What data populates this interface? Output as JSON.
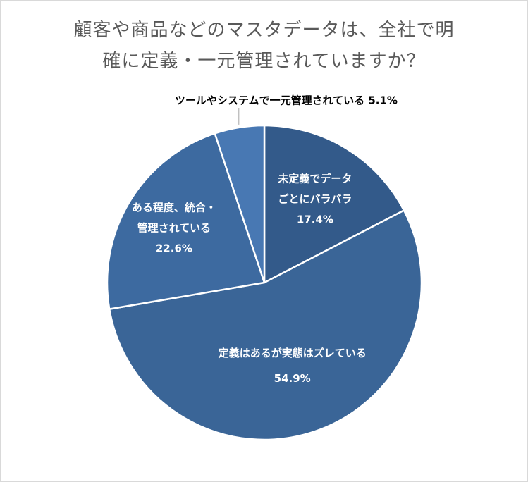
{
  "chart_data": {
    "type": "pie",
    "title_lines": [
      "顧客や商品などのマスタデータは、全社で明",
      "確に定義・一元管理されていますか？"
    ],
    "slices": [
      {
        "label_lines": [
          "未定義でデータ",
          "ごとにバラバラ"
        ],
        "value": 17.4,
        "value_label": "17.4%",
        "color": "#335a8a"
      },
      {
        "label_lines": [
          "定義はあるが実態はズレている"
        ],
        "value": 54.9,
        "value_label": "54.9%",
        "color": "#3a6597"
      },
      {
        "label_lines": [
          "ある程度、統合・",
          "管理されている"
        ],
        "value": 22.6,
        "value_label": "22.6%",
        "color": "#3d6aa0"
      },
      {
        "label_lines": [
          "ツールやシステムで一元管理されている"
        ],
        "value": 5.1,
        "value_label": "5.1%",
        "color": "#4878b3"
      }
    ],
    "start_angle_deg": 0,
    "direction": "clockwise",
    "legend": "none"
  }
}
